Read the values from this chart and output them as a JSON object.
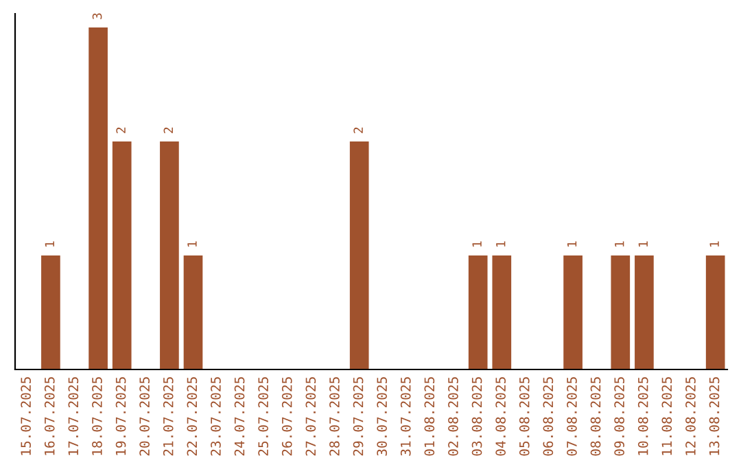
{
  "chart_data": {
    "type": "bar",
    "categories": [
      "15.07.2025",
      "16.07.2025",
      "17.07.2025",
      "18.07.2025",
      "19.07.2025",
      "20.07.2025",
      "21.07.2025",
      "22.07.2025",
      "23.07.2025",
      "24.07.2025",
      "25.07.2025",
      "26.07.2025",
      "27.07.2025",
      "28.07.2025",
      "29.07.2025",
      "30.07.2025",
      "31.07.2025",
      "01.08.2025",
      "02.08.2025",
      "03.08.2025",
      "04.08.2025",
      "05.08.2025",
      "06.08.2025",
      "07.08.2025",
      "08.08.2025",
      "09.08.2025",
      "10.08.2025",
      "11.08.2025",
      "12.08.2025",
      "13.08.2025"
    ],
    "values": [
      0,
      1,
      0,
      3,
      2,
      0,
      2,
      1,
      0,
      0,
      0,
      0,
      0,
      0,
      2,
      0,
      0,
      0,
      0,
      1,
      1,
      0,
      0,
      1,
      0,
      1,
      1,
      0,
      0,
      1
    ],
    "color": "#a0522d",
    "value_labels": [
      null,
      "1",
      null,
      "3",
      "2",
      null,
      "2",
      "1",
      null,
      null,
      null,
      null,
      null,
      null,
      "2",
      null,
      null,
      null,
      null,
      "1",
      "1",
      null,
      null,
      "1",
      null,
      "1",
      "1",
      null,
      null,
      "1"
    ],
    "grid": false,
    "legend": false
  }
}
